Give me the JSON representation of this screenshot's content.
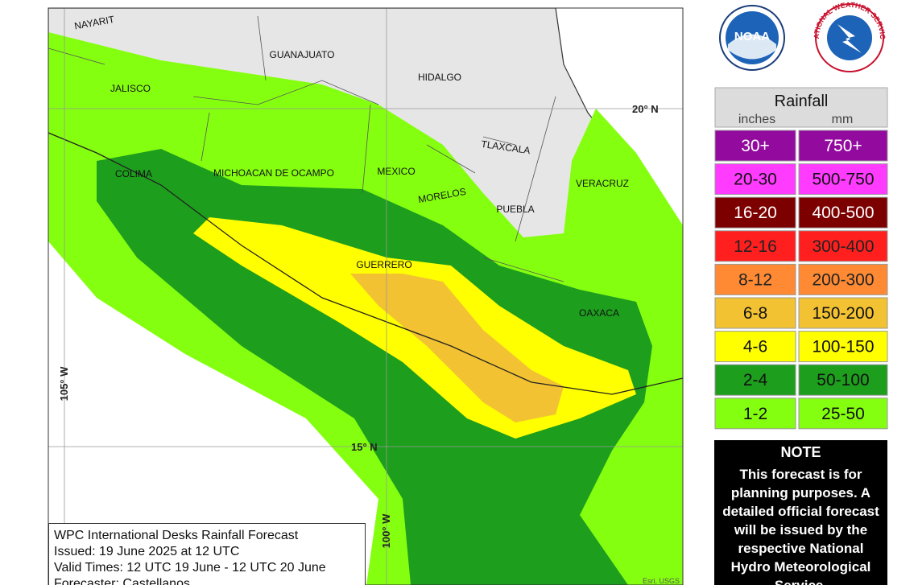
{
  "map": {
    "labels": [
      "NAYARIT",
      "JALISCO",
      "GUANAJUATO",
      "HIDALGO",
      "TLAXCALA",
      "COLIMA",
      "MICHOACAN DE OCAMPO",
      "MEXICO",
      "MORELOS",
      "PUEBLA",
      "VERACRUZ",
      "GUERRERO",
      "OAXACA"
    ],
    "grid_labels": [
      "20° N",
      "15° N",
      "105° W",
      "100° W"
    ],
    "credit": "Esri, USGS"
  },
  "info": {
    "lines": [
      "WPC International Desks Rainfall Forecast",
      "Issued: 19 June 2025 at 12 UTC",
      "Valid Times: 12 UTC 19 June - 12 UTC 20 June",
      "Forecaster: Castellanos"
    ]
  },
  "logos": [
    "NOAA",
    "NATIONAL WEATHER SERVICE"
  ],
  "legend": {
    "title": "Rainfall",
    "units": [
      "inches",
      "mm"
    ],
    "rows": [
      {
        "inches": "30+",
        "mm": "750+",
        "color": "#930a9f",
        "text_color": "#ffffff"
      },
      {
        "inches": "20-30",
        "mm": "500-750",
        "color": "#ff3bff",
        "text_color": "#111111"
      },
      {
        "inches": "16-20",
        "mm": "400-500",
        "color": "#7d0000",
        "text_color": "#ffffff"
      },
      {
        "inches": "12-16",
        "mm": "300-400",
        "color": "#ff1f1f",
        "text_color": "#222222"
      },
      {
        "inches": "8-12",
        "mm": "200-300",
        "color": "#ff8a33",
        "text_color": "#222222"
      },
      {
        "inches": "6-8",
        "mm": "150-200",
        "color": "#f2c232",
        "text_color": "#111111"
      },
      {
        "inches": "4-6",
        "mm": "100-150",
        "color": "#ffff00",
        "text_color": "#111111"
      },
      {
        "inches": "2-4",
        "mm": "50-100",
        "color": "#1d9e1d",
        "text_color": "#111111"
      },
      {
        "inches": "1-2",
        "mm": "25-50",
        "color": "#85ff10",
        "text_color": "#111111"
      }
    ]
  },
  "note": {
    "title": "NOTE",
    "text": "This forecast is for planning purposes. A detailed official forecast will be issued by the respective National Hydro Meteorological Service."
  }
}
